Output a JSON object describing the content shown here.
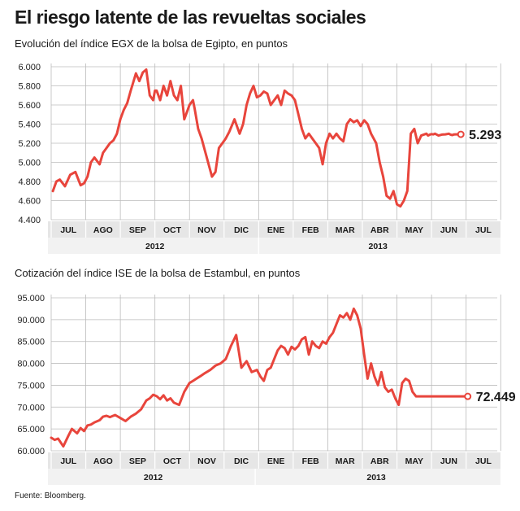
{
  "title": "El riesgo latente de las revueltas sociales",
  "source": "Fuente: Bloomberg.",
  "colors": {
    "line": "#e8453c",
    "grid": "#bbbbbb",
    "band": "#e6e6e6"
  },
  "chart_data": [
    {
      "type": "line",
      "title": "Evolución del índice EGX de la bolsa de Egipto, en puntos",
      "xlabel": "",
      "ylabel": "",
      "ylim": [
        4400,
        6000
      ],
      "yticks": [
        4400,
        4600,
        4800,
        5000,
        5200,
        5400,
        5600,
        5800,
        6000
      ],
      "ytick_labels": [
        "4.400",
        "4.600",
        "4.800",
        "5.000",
        "5.200",
        "5.400",
        "5.600",
        "5.800",
        "6.000"
      ],
      "grid": true,
      "x_unit": "month index (0 = start of JUL 2012)",
      "xlim": [
        0,
        12
      ],
      "months": [
        "JUL",
        "AGO",
        "SEP",
        "OCT",
        "NOV",
        "DIC",
        "ENE",
        "FEB",
        "MAR",
        "ABR",
        "MAY",
        "JUN",
        "JUL"
      ],
      "years": [
        {
          "label": "2012",
          "from": 0,
          "to": 6
        },
        {
          "label": "2013",
          "from": 6,
          "to": 12.9
        }
      ],
      "end_label": "5.293",
      "series": [
        {
          "x": [
            0.05,
            0.15,
            0.25,
            0.4,
            0.55,
            0.7,
            0.85,
            0.95,
            1.05,
            1.15,
            1.25,
            1.4,
            1.5,
            1.6,
            1.7,
            1.8,
            1.9,
            2.0,
            2.1,
            2.2,
            2.3,
            2.45,
            2.55,
            2.65,
            2.75,
            2.85,
            2.95,
            3.0,
            3.05,
            3.15,
            3.25,
            3.35,
            3.45,
            3.55,
            3.65,
            3.75,
            3.85,
            3.95,
            4.0,
            4.1,
            4.15,
            4.25,
            4.35,
            4.5,
            4.65,
            4.75,
            4.85,
            4.95,
            5.05,
            5.15,
            5.3,
            5.45,
            5.55,
            5.65,
            5.75,
            5.85,
            5.95,
            6.05,
            6.15,
            6.25,
            6.35,
            6.45,
            6.55,
            6.65,
            6.75,
            6.85,
            6.95,
            7.05,
            7.15,
            7.25,
            7.35,
            7.45,
            7.55,
            7.65,
            7.75,
            7.85,
            7.95,
            8.05,
            8.15,
            8.25,
            8.35,
            8.45,
            8.55,
            8.65,
            8.75,
            8.85,
            8.95,
            9.05,
            9.15,
            9.25,
            9.4,
            9.5,
            9.6,
            9.7,
            9.8,
            9.9,
            10.0,
            10.1,
            10.2,
            10.3,
            10.4,
            10.5,
            10.6,
            10.7,
            10.8,
            10.85,
            10.9,
            10.95,
            11.0,
            11.05,
            11.1,
            11.2,
            11.3,
            11.4,
            11.5,
            11.55,
            11.6,
            11.65,
            11.7,
            11.75,
            11.8
          ],
          "y": [
            4700,
            4800,
            4820,
            4750,
            4870,
            4900,
            4760,
            4780,
            4850,
            5000,
            5050,
            4980,
            5100,
            5150,
            5200,
            5230,
            5300,
            5450,
            5550,
            5620,
            5750,
            5930,
            5850,
            5940,
            5970,
            5700,
            5650,
            5750,
            5750,
            5650,
            5800,
            5700,
            5850,
            5700,
            5650,
            5800,
            5450,
            5550,
            5600,
            5650,
            5560,
            5350,
            5250,
            5050,
            4850,
            4900,
            5150,
            5200,
            5250,
            5320,
            5450,
            5300,
            5400,
            5600,
            5720,
            5800,
            5680,
            5700,
            5740,
            5720,
            5600,
            5650,
            5700,
            5600,
            5750,
            5720,
            5700,
            5650,
            5500,
            5350,
            5250,
            5300,
            5250,
            5200,
            5150,
            4980,
            5200,
            5300,
            5250,
            5300,
            5250,
            5220,
            5400,
            5450,
            5420,
            5440,
            5380,
            5440,
            5400,
            5300,
            5200,
            5000,
            4850,
            4650,
            4620,
            4700,
            4560,
            4540,
            4600,
            4700,
            5300,
            5350,
            5200,
            5280,
            5293,
            5300,
            5280,
            5290,
            5295,
            5293,
            5300,
            5280,
            5290,
            5293,
            5300,
            5290,
            5285,
            5292,
            5293,
            5293,
            5293
          ]
        }
      ]
    },
    {
      "type": "line",
      "title": "Cotización del índice ISE de la bolsa de Estambul, en puntos",
      "xlabel": "",
      "ylabel": "",
      "ylim": [
        60000,
        95000
      ],
      "yticks": [
        60000,
        65000,
        70000,
        75000,
        80000,
        85000,
        90000,
        95000
      ],
      "ytick_labels": [
        "60.000",
        "65.000",
        "70.000",
        "75.000",
        "80.000",
        "85.000",
        "90.000",
        "95.000"
      ],
      "grid": true,
      "x_unit": "month index (0 = start of JUL 2012)",
      "xlim": [
        0,
        12
      ],
      "months": [
        "JUL",
        "AGO",
        "SEP",
        "OCT",
        "NOV",
        "DIC",
        "ENE",
        "FEB",
        "MAR",
        "ABR",
        "MAY",
        "JUN",
        "JUL"
      ],
      "years": [
        {
          "label": "2012",
          "from": 0,
          "to": 5.9
        },
        {
          "label": "2013",
          "from": 5.9,
          "to": 12.9
        }
      ],
      "end_label": "72.449",
      "series": [
        {
          "x": [
            0.0,
            0.1,
            0.2,
            0.35,
            0.5,
            0.6,
            0.75,
            0.85,
            0.95,
            1.05,
            1.15,
            1.25,
            1.4,
            1.5,
            1.6,
            1.7,
            1.85,
            2.0,
            2.15,
            2.3,
            2.45,
            2.6,
            2.75,
            2.85,
            2.95,
            3.05,
            3.15,
            3.25,
            3.35,
            3.45,
            3.55,
            3.7,
            3.85,
            4.0,
            4.1,
            4.2,
            4.3,
            4.45,
            4.6,
            4.75,
            4.9,
            5.05,
            5.2,
            5.35,
            5.5,
            5.65,
            5.8,
            5.95,
            6.05,
            6.15,
            6.25,
            6.35,
            6.45,
            6.55,
            6.65,
            6.75,
            6.85,
            6.95,
            7.05,
            7.15,
            7.25,
            7.35,
            7.45,
            7.55,
            7.65,
            7.75,
            7.85,
            7.95,
            8.05,
            8.15,
            8.25,
            8.35,
            8.45,
            8.55,
            8.65,
            8.75,
            8.85,
            8.95,
            9.05,
            9.15,
            9.25,
            9.35,
            9.45,
            9.55,
            9.65,
            9.75,
            9.85,
            9.95,
            10.05,
            10.15,
            10.25,
            10.35,
            10.45,
            10.55,
            10.6,
            10.7,
            10.8,
            10.9,
            11.0,
            11.1,
            11.2,
            11.3,
            11.4,
            11.5,
            11.6,
            11.7,
            11.8,
            11.9,
            12.0
          ],
          "y": [
            63000,
            62500,
            62800,
            61000,
            63500,
            65000,
            64000,
            65200,
            64500,
            65800,
            66000,
            66500,
            67000,
            67800,
            68000,
            67700,
            68200,
            67500,
            66800,
            67800,
            68500,
            69500,
            71500,
            72000,
            72800,
            72500,
            71800,
            72700,
            71500,
            72000,
            71000,
            70500,
            73500,
            75500,
            76000,
            76500,
            77000,
            77800,
            78500,
            79500,
            80000,
            81000,
            84000,
            86500,
            79000,
            80500,
            78000,
            78500,
            77000,
            76000,
            78500,
            79000,
            81000,
            83000,
            84000,
            83500,
            82000,
            83800,
            83200,
            84000,
            85500,
            86000,
            82000,
            85000,
            84000,
            83500,
            85000,
            84500,
            86000,
            87000,
            89000,
            91000,
            90500,
            91500,
            90000,
            92500,
            91000,
            88000,
            82000,
            76500,
            80000,
            77000,
            75000,
            78000,
            74500,
            73500,
            74000,
            72000,
            70500,
            75500,
            76500,
            76000,
            73500,
            72449,
            72449,
            72449,
            72449,
            72449,
            72449,
            72449,
            72449,
            72449,
            72449,
            72449,
            72449,
            72449,
            72449,
            72449,
            72449
          ]
        }
      ]
    }
  ]
}
